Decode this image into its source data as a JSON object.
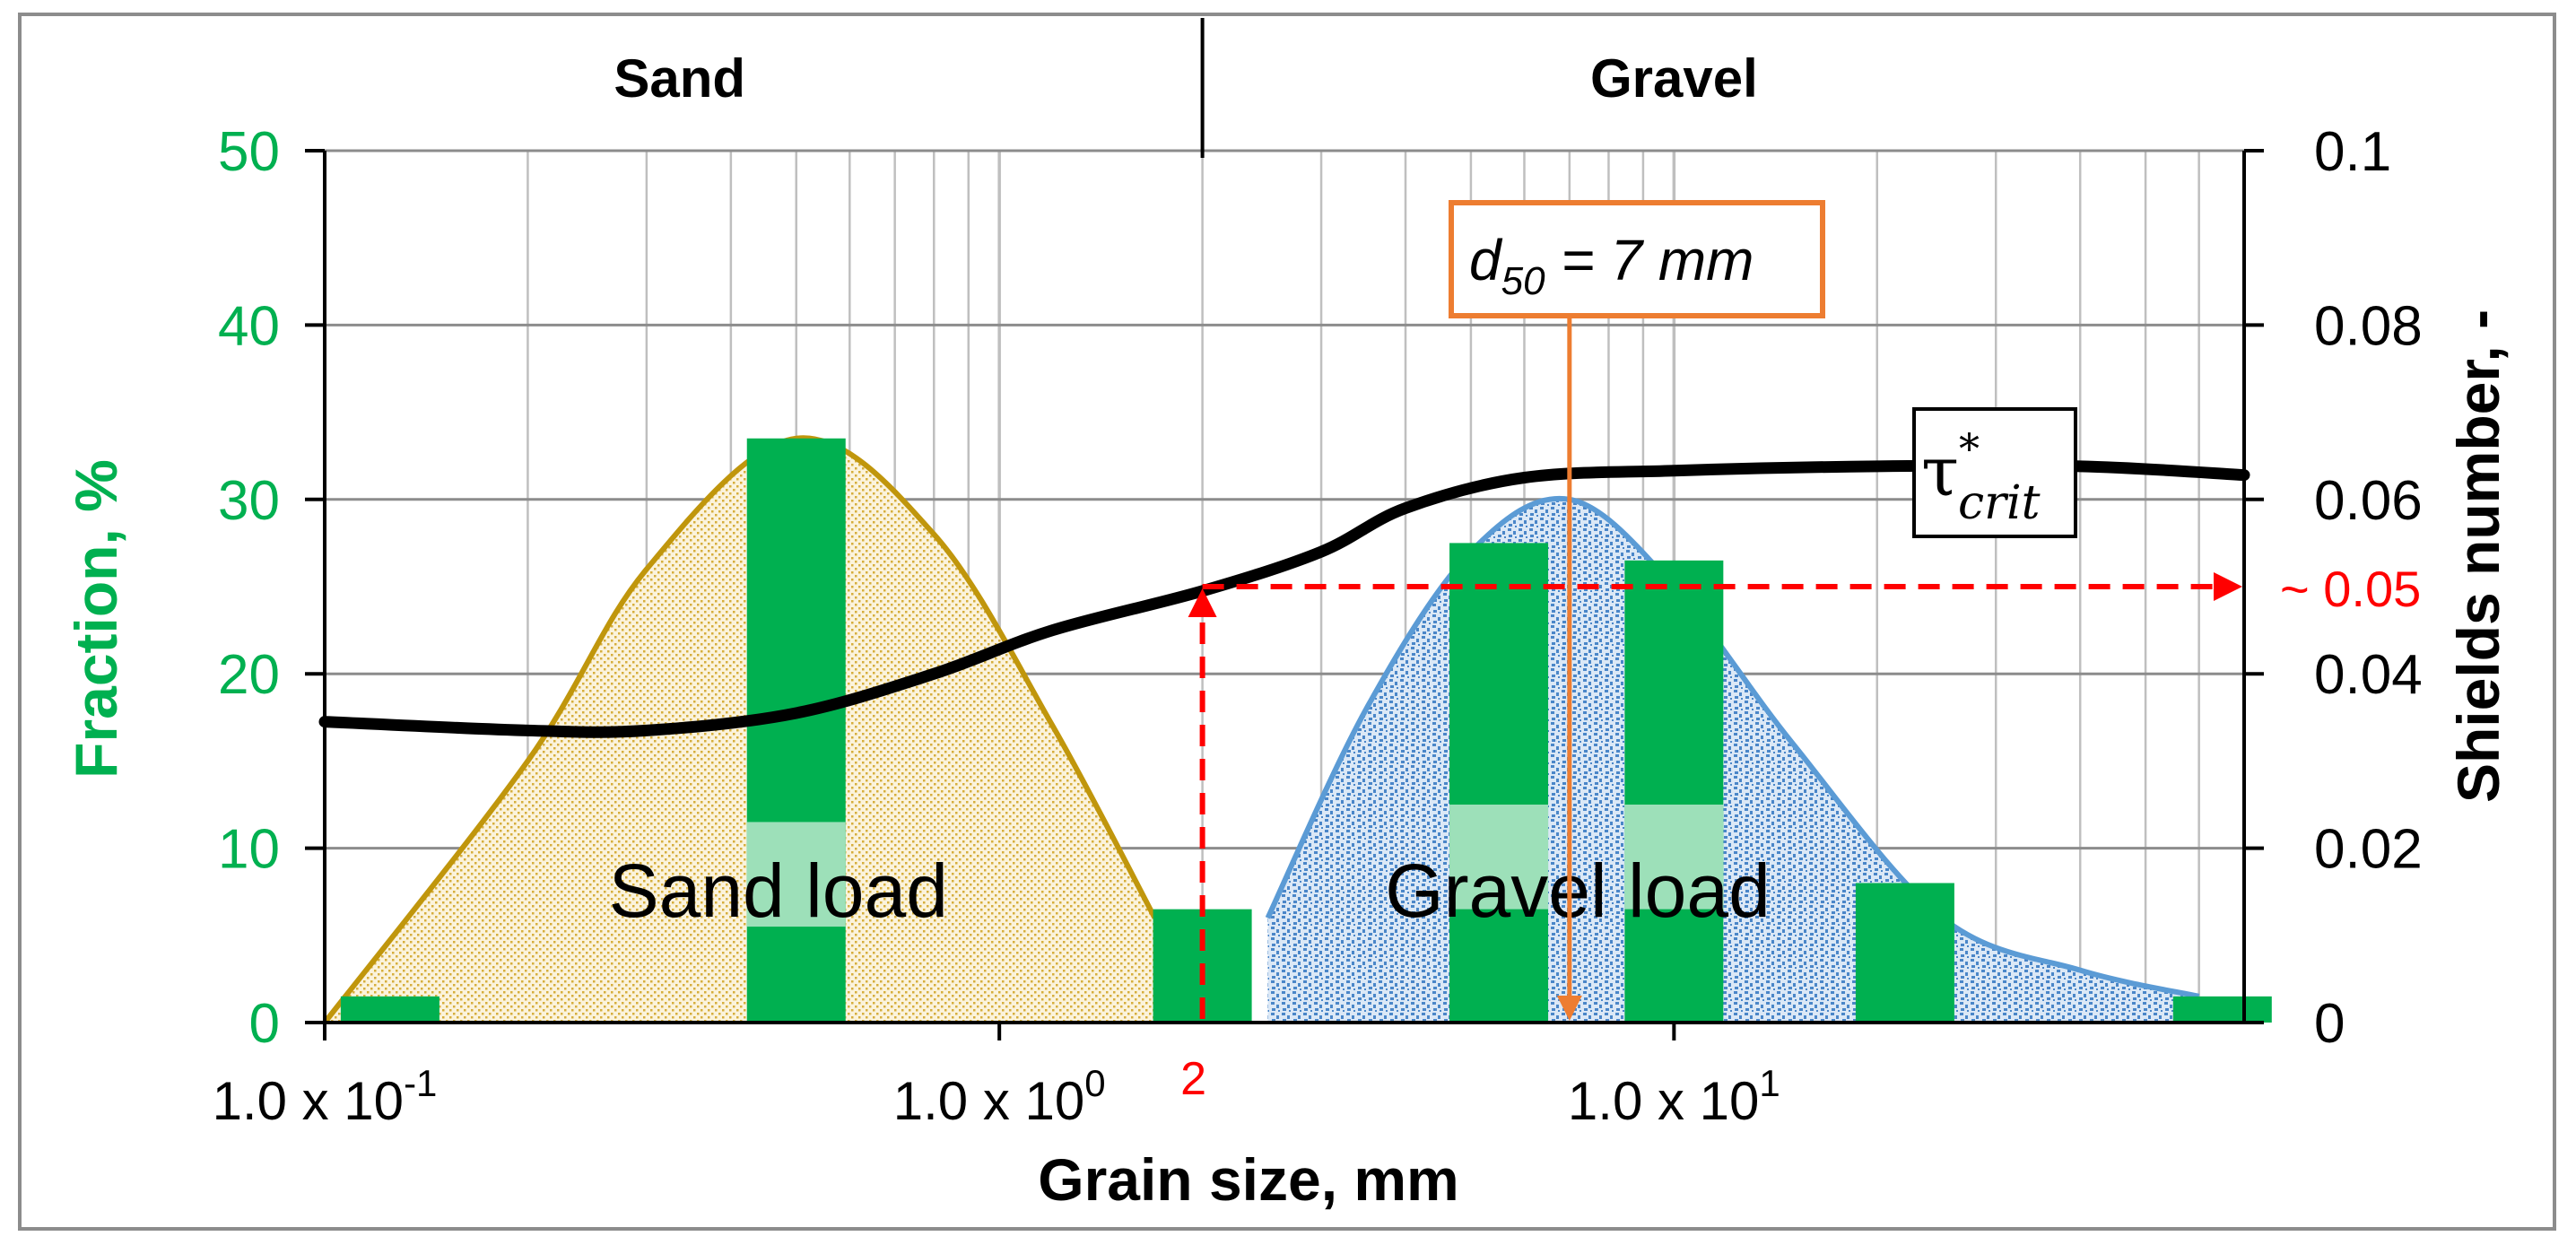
{
  "chart_data": {
    "type": "bar",
    "title": "",
    "xlabel": "Grain size, mm",
    "ylabel": "Fraction, %",
    "y2label": "Shields number, -",
    "x_scale": "log",
    "xlim": [
      0.1,
      70
    ],
    "ylim": [
      0,
      50
    ],
    "y2lim": [
      0,
      0.1
    ],
    "grid": true,
    "legend": "none",
    "x_ticks": [
      {
        "value": 0.1,
        "base": "1.0 x 10",
        "exp": "-1"
      },
      {
        "value": 1,
        "base": "1.0 x 10",
        "exp": "0"
      },
      {
        "value": 10,
        "base": "1.0 x 10",
        "exp": "1"
      }
    ],
    "y_ticks": [
      "0",
      "10",
      "20",
      "30",
      "40",
      "50"
    ],
    "y2_ticks": [
      "0",
      "0.02",
      "0.04",
      "0.06",
      "0.08",
      "0.1"
    ],
    "region_labels": [
      {
        "text": "Sand",
        "x": 0.5
      },
      {
        "text": "Gravel",
        "x": 10
      }
    ],
    "region_boundary": 2,
    "bars": [
      {
        "x": 0.125,
        "value": 1.5
      },
      {
        "x": 0.5,
        "value": 33.5
      },
      {
        "x": 2,
        "value": 6.5
      },
      {
        "x": 5.5,
        "value": 27.5
      },
      {
        "x": 10,
        "value": 26.5
      },
      {
        "x": 22,
        "value": 8
      },
      {
        "x": 65,
        "value": 1.5
      }
    ],
    "sand_load_curve": {
      "label": "Sand load",
      "points": [
        [
          0.1,
          0
        ],
        [
          0.2,
          15
        ],
        [
          0.3,
          26
        ],
        [
          0.5,
          33.5
        ],
        [
          0.8,
          28
        ],
        [
          1.2,
          17
        ],
        [
          1.7,
          6
        ]
      ]
    },
    "gravel_load_curve": {
      "label": "Gravel load",
      "points": [
        [
          2.5,
          6
        ],
        [
          3.5,
          18
        ],
        [
          5,
          27
        ],
        [
          7,
          30
        ],
        [
          10,
          25
        ],
        [
          15,
          16
        ],
        [
          25,
          6
        ],
        [
          40,
          3
        ],
        [
          60,
          1.5
        ]
      ]
    },
    "shields_curve": {
      "label_base": "τ",
      "label_sup": "*",
      "label_sub": "crit",
      "points": [
        [
          0.1,
          0.0345
        ],
        [
          0.2,
          0.0335
        ],
        [
          0.3,
          0.0335
        ],
        [
          0.5,
          0.0355
        ],
        [
          0.8,
          0.04
        ],
        [
          1.2,
          0.045
        ],
        [
          2,
          0.0495
        ],
        [
          3,
          0.054
        ],
        [
          4,
          0.059
        ],
        [
          6,
          0.0625
        ],
        [
          10,
          0.0633
        ],
        [
          20,
          0.0638
        ],
        [
          40,
          0.0638
        ],
        [
          70,
          0.0628
        ]
      ]
    },
    "d50": {
      "value": 7,
      "label_d": "d",
      "label_sub": "50",
      "label_rest": " = 7 mm"
    },
    "critical_marker": {
      "x": 2,
      "y2": 0.05,
      "x_label": "2",
      "y2_label": "~ 0.05"
    }
  },
  "colors": {
    "bar": "#00b050",
    "left_axis": "#00b050",
    "sand_curve": "#c0960c",
    "sand_fill": "#d6ae3c",
    "gravel_curve": "#5b9bd5",
    "gravel_fill": "#4a86c8",
    "shields": "#000000",
    "d50": "#ed7d31",
    "critical": "#ff0000",
    "grid": "#bfbfbf"
  }
}
